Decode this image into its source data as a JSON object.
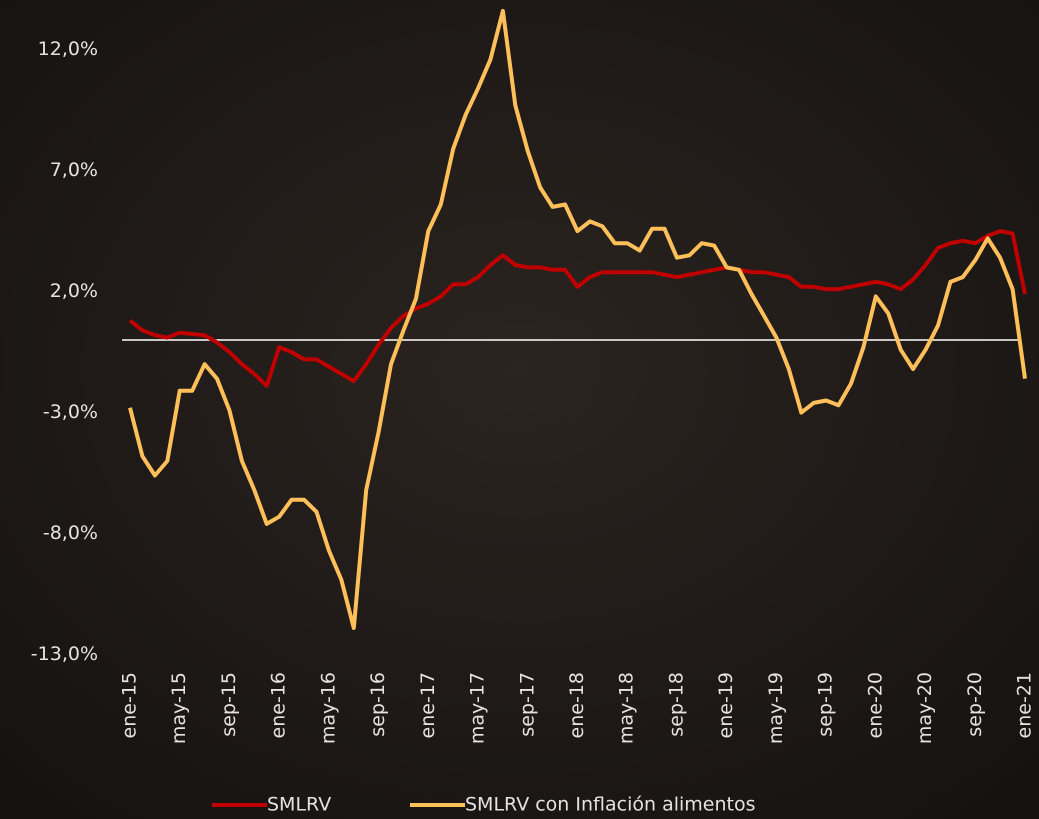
{
  "chart_data": {
    "type": "line",
    "categories": [
      "ene-15",
      null,
      null,
      null,
      "may-15",
      null,
      null,
      null,
      "sep-15",
      null,
      null,
      null,
      "ene-16",
      null,
      null,
      null,
      "may-16",
      null,
      null,
      null,
      "sep-16",
      null,
      null,
      null,
      "ene-17",
      null,
      null,
      null,
      "may-17",
      null,
      null,
      null,
      "sep-17",
      null,
      null,
      null,
      "ene-18",
      null,
      null,
      null,
      "may-18",
      null,
      null,
      null,
      "sep-18",
      null,
      null,
      null,
      "ene-19",
      null,
      null,
      null,
      "may-19",
      null,
      null,
      null,
      "sep-19",
      null,
      null,
      null,
      "ene-20",
      null,
      null,
      null,
      "may-20",
      null,
      null,
      null,
      "sep-20",
      null,
      null,
      null,
      "ene-21"
    ],
    "series": [
      {
        "name": "SMLRV",
        "color": "#c00000",
        "values": [
          0.8,
          0.4,
          0.2,
          0.1,
          0.3,
          0.25,
          0.2,
          -0.1,
          -0.5,
          -1.0,
          -1.4,
          -1.9,
          -0.3,
          -0.5,
          -0.8,
          -0.8,
          -1.1,
          -1.4,
          -1.7,
          -1.0,
          -0.2,
          0.5,
          1.0,
          1.3,
          1.5,
          1.8,
          2.3,
          2.3,
          2.6,
          3.1,
          3.5,
          3.1,
          3.0,
          3.0,
          2.9,
          2.9,
          2.2,
          2.6,
          2.8,
          2.8,
          2.8,
          2.8,
          2.8,
          2.7,
          2.6,
          2.7,
          2.8,
          2.9,
          3.0,
          2.9,
          2.8,
          2.8,
          2.7,
          2.6,
          2.2,
          2.2,
          2.1,
          2.1,
          2.2,
          2.3,
          2.4,
          2.3,
          2.1,
          2.5,
          3.1,
          3.8,
          4.0,
          4.1,
          4.0,
          4.3,
          4.5,
          4.4,
          1.9
        ]
      },
      {
        "name": "SMLRV con Inflación alimentos",
        "color": "#ffc05a",
        "values": [
          -2.8,
          -4.8,
          -5.6,
          -5.0,
          -2.1,
          -2.1,
          -1.0,
          -1.6,
          -2.9,
          -5.0,
          -6.2,
          -7.6,
          -7.3,
          -6.6,
          -6.6,
          -7.1,
          -8.7,
          -9.9,
          -11.9,
          -6.2,
          -3.8,
          -1.0,
          0.4,
          1.7,
          4.5,
          5.6,
          7.9,
          9.3,
          10.4,
          11.6,
          13.6,
          9.7,
          7.8,
          6.3,
          5.5,
          5.6,
          4.5,
          4.9,
          4.7,
          4.0,
          4.0,
          3.7,
          4.6,
          4.6,
          3.4,
          3.5,
          4.0,
          3.9,
          3.0,
          2.9,
          1.9,
          1.0,
          0.1,
          -1.2,
          -3.0,
          -2.6,
          -2.5,
          -2.7,
          -1.8,
          -0.3,
          1.8,
          1.1,
          -0.4,
          -1.2,
          -0.4,
          0.6,
          2.4,
          2.6,
          3.3,
          4.2,
          3.4,
          2.1,
          -1.6
        ]
      }
    ],
    "ylim": [
      -13,
      14
    ],
    "yticks": [
      {
        "value": -13,
        "label": "-13,0%"
      },
      {
        "value": -8,
        "label": "-8,0%"
      },
      {
        "value": -3,
        "label": "-3,0%"
      },
      {
        "value": 2,
        "label": "2,0%"
      },
      {
        "value": 7,
        "label": "7,0%"
      },
      {
        "value": 12,
        "label": "12,0%"
      }
    ],
    "grid": false,
    "legend": "bottom"
  }
}
